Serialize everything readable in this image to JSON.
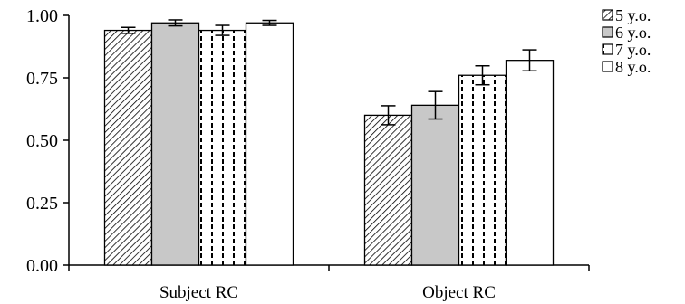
{
  "chart_data": {
    "type": "bar",
    "title": "",
    "xlabel": "",
    "ylabel": "",
    "ylim": [
      0,
      1.0
    ],
    "yticks": [
      "0.00",
      "0.25",
      "0.50",
      "0.75",
      "1.00"
    ],
    "grid": false,
    "legend_position": "top-right",
    "categories": [
      "Subject RC",
      "Object RC"
    ],
    "series": [
      {
        "name": "5 y.o.",
        "values": [
          0.94,
          0.6
        ],
        "errors": [
          0.012,
          0.038
        ],
        "pattern": "diagonal-hatch",
        "fill": "#ffffff"
      },
      {
        "name": "6 y.o.",
        "values": [
          0.97,
          0.64
        ],
        "errors": [
          0.012,
          0.055
        ],
        "pattern": "solid",
        "fill": "#c8c8c8"
      },
      {
        "name": "7 y.o.",
        "values": [
          0.94,
          0.76
        ],
        "errors": [
          0.02,
          0.038
        ],
        "pattern": "vertical-dash",
        "fill": "#ffffff"
      },
      {
        "name": "8 y.o.",
        "values": [
          0.97,
          0.82
        ],
        "errors": [
          0.01,
          0.042
        ],
        "pattern": "solid",
        "fill": "#ffffff"
      }
    ],
    "colors": {
      "axis": "#000000",
      "bar_edge": "#000000",
      "hatch": "#000000"
    }
  }
}
